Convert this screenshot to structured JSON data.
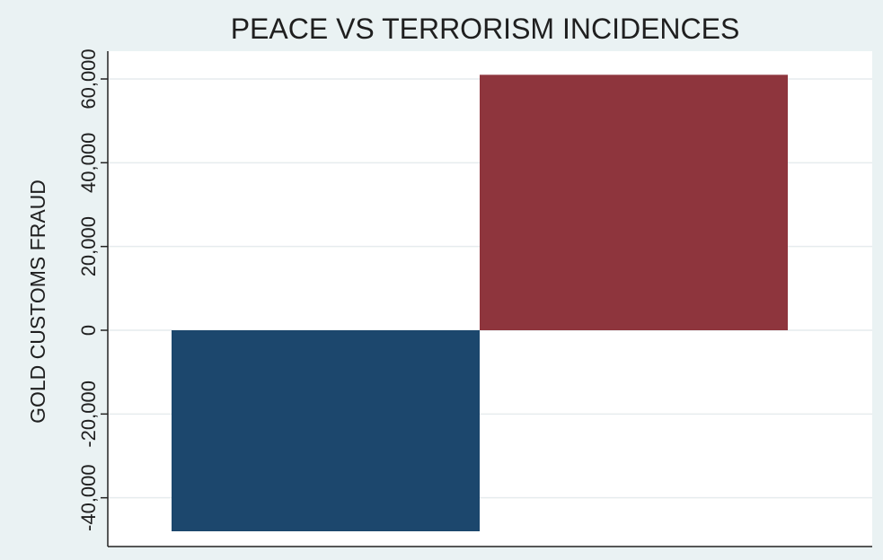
{
  "chart_data": {
    "type": "bar",
    "title": "PEACE VS TERRORISM INCIDENCES",
    "xlabel": "",
    "ylabel": "GOLD CUSTOMS FRAUD",
    "ylim": [
      -50000,
      65000
    ],
    "yticks": [
      -40000,
      -20000,
      0,
      20000,
      40000,
      60000
    ],
    "ytick_labels": [
      "-40,000",
      "-20,000",
      "0",
      "20,000",
      "40,000",
      "60,000"
    ],
    "grid": true,
    "bars": [
      {
        "value": -48000,
        "color": "#1c476d"
      },
      {
        "value": 61000,
        "color": "#8e353d"
      }
    ]
  }
}
